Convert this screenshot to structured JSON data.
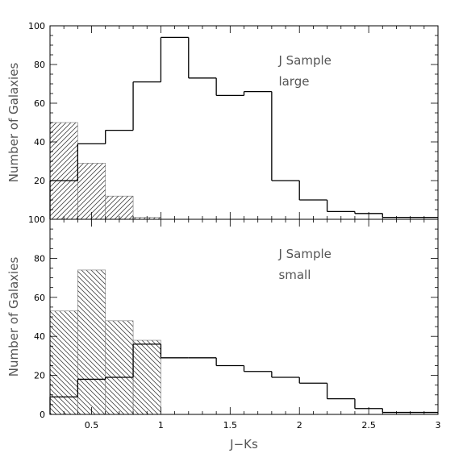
{
  "chart_data": [
    {
      "type": "bar",
      "annotation": [
        "J Sample",
        "large"
      ],
      "ylabel": "Number of Galaxies",
      "xlabel": "",
      "xlim": [
        0.2,
        3.0
      ],
      "ylim": [
        0,
        100
      ],
      "yticks": [
        20,
        40,
        60,
        80,
        100
      ],
      "xticks": [],
      "bin_edges": [
        0.2,
        0.4,
        0.6,
        0.8,
        1.0,
        1.2,
        1.4,
        1.6,
        1.8,
        2.0,
        2.2,
        2.4,
        2.6,
        2.8,
        3.0
      ],
      "series": [
        {
          "style": "hatched",
          "hatch": "forward-diagonal",
          "values": [
            50,
            29,
            12,
            1,
            0,
            0,
            0,
            0,
            0,
            0,
            0,
            0,
            0,
            0
          ]
        },
        {
          "style": "step-outline",
          "values": [
            20,
            39,
            46,
            71,
            94,
            73,
            64,
            66,
            20,
            10,
            4,
            3,
            1,
            1
          ]
        }
      ],
      "legend": "none",
      "grid": false
    },
    {
      "type": "bar",
      "annotation": [
        "J Sample",
        "small"
      ],
      "ylabel": "Number of Galaxies",
      "xlabel": "J−Ks",
      "xlim": [
        0.2,
        3.0
      ],
      "ylim": [
        0,
        100
      ],
      "yticks": [
        0,
        20,
        40,
        60,
        80,
        100
      ],
      "xticks": [
        0.5,
        1,
        1.5,
        2,
        2.5,
        3
      ],
      "bin_edges": [
        0.2,
        0.4,
        0.6,
        0.8,
        1.0,
        1.2,
        1.4,
        1.6,
        1.8,
        2.0,
        2.2,
        2.4,
        2.6,
        2.8,
        3.0
      ],
      "series": [
        {
          "style": "hatched",
          "hatch": "back-diagonal",
          "values": [
            53,
            74,
            48,
            38,
            0,
            0,
            0,
            0,
            0,
            0,
            0,
            0,
            0,
            0
          ]
        },
        {
          "style": "step-outline",
          "values": [
            9,
            18,
            19,
            36,
            29,
            29,
            25,
            22,
            19,
            16,
            8,
            3,
            1,
            1
          ]
        }
      ],
      "legend": "none",
      "grid": false
    }
  ]
}
